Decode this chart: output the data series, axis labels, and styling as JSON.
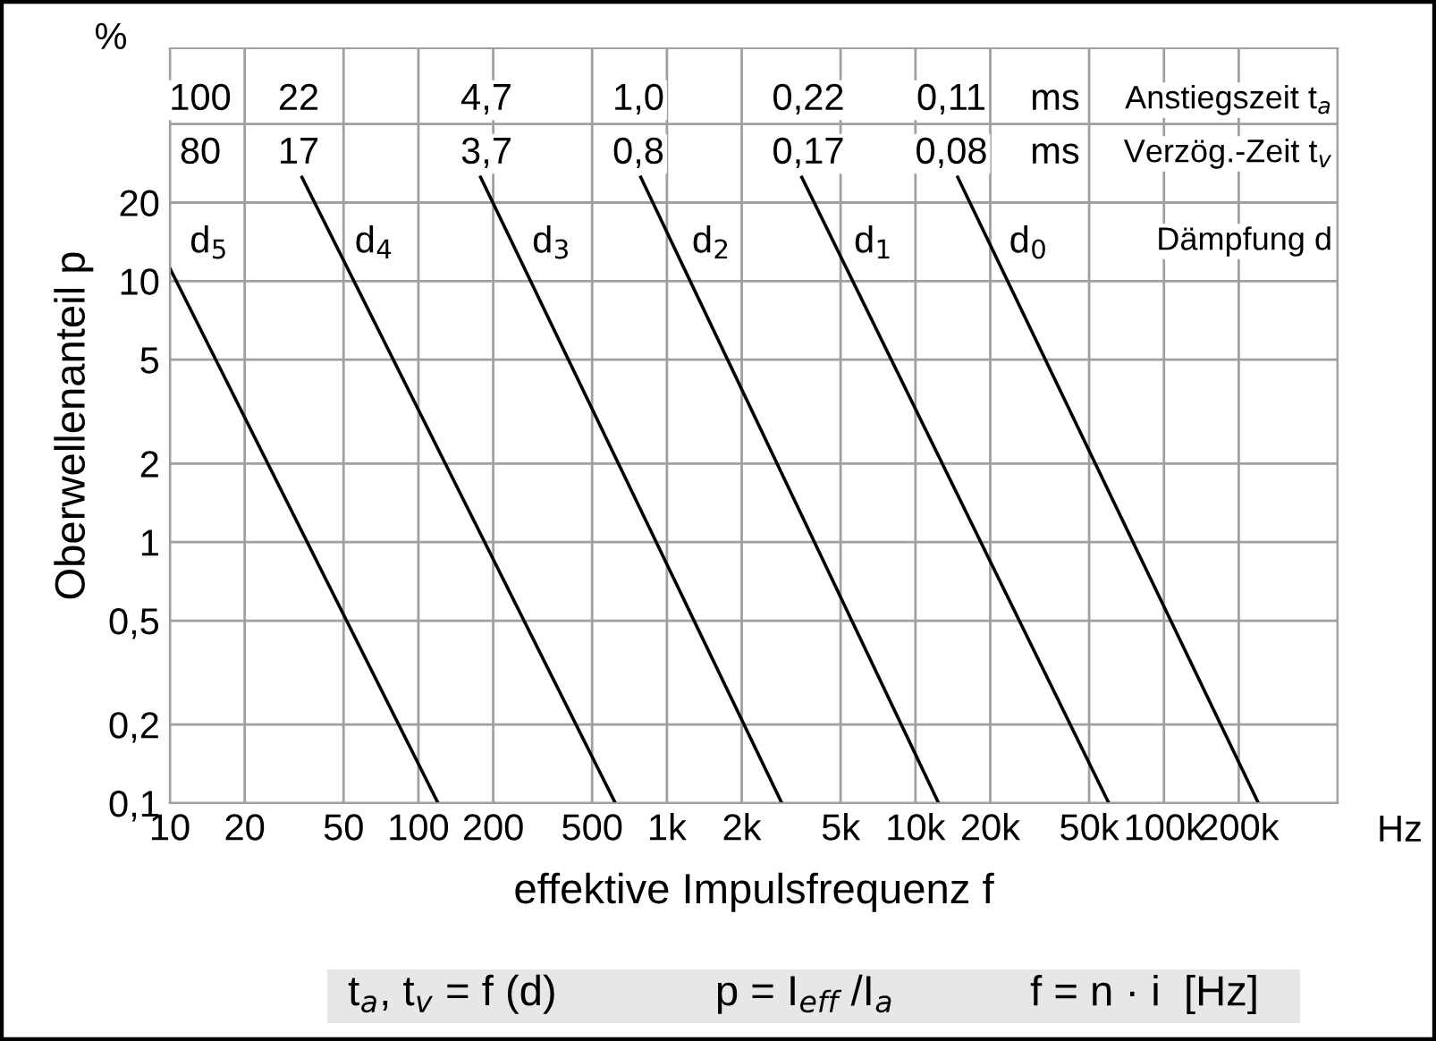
{
  "chart_data": {
    "type": "line",
    "xlabel": "effektive Impulsfrequenz f",
    "ylabel": "Oberwellenanteil p",
    "log": "xy",
    "xlim": [
      10,
      500000
    ],
    "ylim": [
      0.1,
      78
    ],
    "xticks": [
      10,
      20,
      50,
      100,
      200,
      500,
      {
        "value": 1000,
        "label": "1k"
      },
      {
        "value": 2000,
        "label": "2k"
      },
      {
        "value": 5000,
        "label": "5k"
      },
      {
        "value": 10000,
        "label": "10k"
      },
      {
        "value": 20000,
        "label": "20k"
      },
      {
        "value": 50000,
        "label": "50k"
      },
      {
        "value": 100000,
        "label": "100k"
      },
      {
        "value": 200000,
        "label": "200k"
      },
      {
        "value": 500000,
        "label": null
      }
    ],
    "yticks": [
      {
        "value": 0.1,
        "label": "0,1"
      },
      {
        "value": 0.2,
        "label": "0,2"
      },
      {
        "value": 0.5,
        "label": "0,5"
      },
      1,
      2,
      5,
      10,
      20,
      {
        "value": 40,
        "label": null
      }
    ],
    "grid": true,
    "legend": false,
    "marker": "none",
    "line_style": "solid",
    "series": [
      {
        "name": "d$_{5}$",
        "color": "#000000",
        "x": [
          10,
          120
        ],
        "values": [
          11.2,
          0.1
        ]
      },
      {
        "name": "d$_{4}$",
        "color": "#000000",
        "x": [
          34,
          620
        ],
        "values": [
          25,
          0.1
        ]
      },
      {
        "name": "d$_{3}$",
        "color": "#000000",
        "x": [
          178,
          2900
        ],
        "values": [
          25,
          0.1
        ]
      },
      {
        "name": "d$_{2}$",
        "color": "#000000",
        "x": [
          785,
          12400
        ],
        "values": [
          25,
          0.1
        ]
      },
      {
        "name": "d$_{1}$",
        "color": "#000000",
        "x": [
          3490,
          60000
        ],
        "values": [
          25,
          0.1
        ]
      },
      {
        "name": "d$_{0}$",
        "color": "#000000",
        "x": [
          14800,
          240000
        ],
        "values": [
          25,
          0.1
        ]
      }
    ],
    "annotations": [
      "%",
      "Hz",
      "100",
      "22",
      "4,7",
      "1,0",
      "0,22",
      "0,11",
      "ms",
      "Anstiegszeit t$_{a}$",
      "80",
      "17",
      "3,7",
      "0,8",
      "0,17",
      "0,08",
      "ms",
      "Verzög.-Zeit t$_{v}$",
      "Dämpfung d",
      "t$_{a}$, t$_{v}$ = f (d)",
      "p = I$_{eff}$ /I$_{a}$",
      "f = n · i  [Hz]"
    ]
  }
}
